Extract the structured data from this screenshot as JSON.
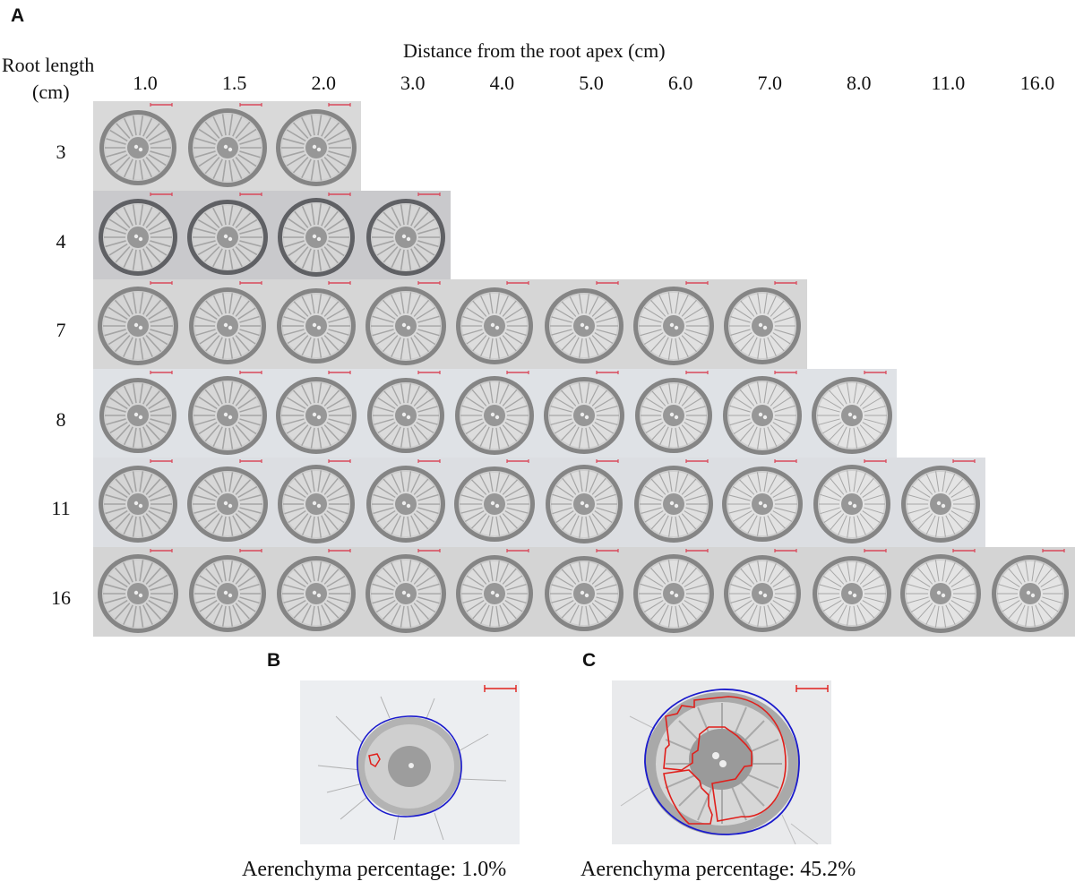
{
  "panels": {
    "A": {
      "letter": "A",
      "x_axis_title": "Distance from the root apex (cm)",
      "y_axis_title_line1": "Root length",
      "y_axis_title_line2": "(cm)",
      "columns": [
        "1.0",
        "1.5",
        "2.0",
        "3.0",
        "4.0",
        "5.0",
        "6.0",
        "7.0",
        "8.0",
        "11.0",
        "16.0"
      ],
      "rows": [
        {
          "label": "3",
          "cells": 3,
          "tone": "#d9d9d9"
        },
        {
          "label": "4",
          "cells": 4,
          "tone": "#c9c9cc"
        },
        {
          "label": "7",
          "cells": 8,
          "tone": "#d6d6d6"
        },
        {
          "label": "8",
          "cells": 9,
          "tone": "#dfe2e6"
        },
        {
          "label": "11",
          "cells": 10,
          "tone": "#dcdee2"
        },
        {
          "label": "16",
          "cells": 11,
          "tone": "#d4d4d4"
        }
      ]
    },
    "B": {
      "letter": "B",
      "caption": "Aerenchyma percentage: 1.0%",
      "aerenchyma_percent": 1.0
    },
    "C": {
      "letter": "C",
      "caption": "Aerenchyma percentage: 45.2%",
      "aerenchyma_percent": 45.2
    }
  },
  "colors": {
    "scale_bar": "#d9485a",
    "outline_blue": "#1a1acc",
    "outline_red": "#e0201c",
    "tissue": "#8a8a8a",
    "background": "#ffffff"
  }
}
